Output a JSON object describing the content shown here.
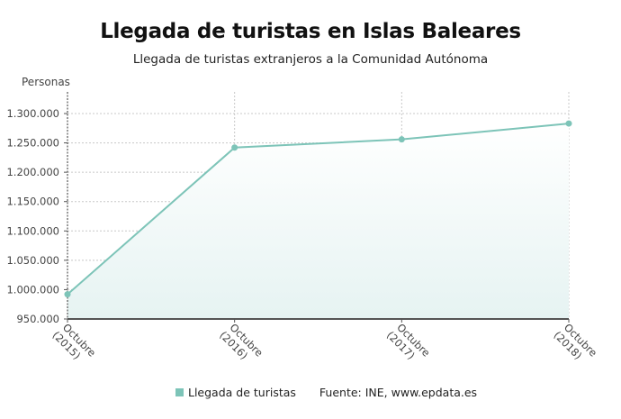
{
  "header": {
    "title": "Llegada de turistas en Islas Baleares",
    "subtitle": "Llegada de turistas extranjeros a la Comunidad Autónoma",
    "y_axis_label": "Personas"
  },
  "legend": {
    "series_label": "Llegada de turistas",
    "source": "Fuente: INE, www.epdata.es"
  },
  "colors": {
    "line": "#7dc4b8",
    "area": "#eef7f6",
    "grid": "#c8c8c8",
    "axis": "#555555"
  },
  "chart_data": {
    "type": "area",
    "title": "Llegada de turistas en Islas Baleares",
    "subtitle": "Llegada de turistas extranjeros a la Comunidad Autónoma",
    "xlabel": "",
    "ylabel": "Personas",
    "categories": [
      "Octubre (2015)",
      "Octubre (2016)",
      "Octubre (2017)",
      "Octubre (2018)"
    ],
    "series": [
      {
        "name": "Llegada de turistas",
        "values": [
          992000,
          1242000,
          1256000,
          1283000
        ]
      }
    ],
    "ylim": [
      950000,
      1300000
    ],
    "yticks": [
      "950.000",
      "1.000.000",
      "1.050.000",
      "1.100.000",
      "1.150.000",
      "1.200.000",
      "1.250.000",
      "1.300.000"
    ],
    "grid": true,
    "legend_position": "bottom",
    "source": "Fuente: INE, www.epdata.es"
  }
}
